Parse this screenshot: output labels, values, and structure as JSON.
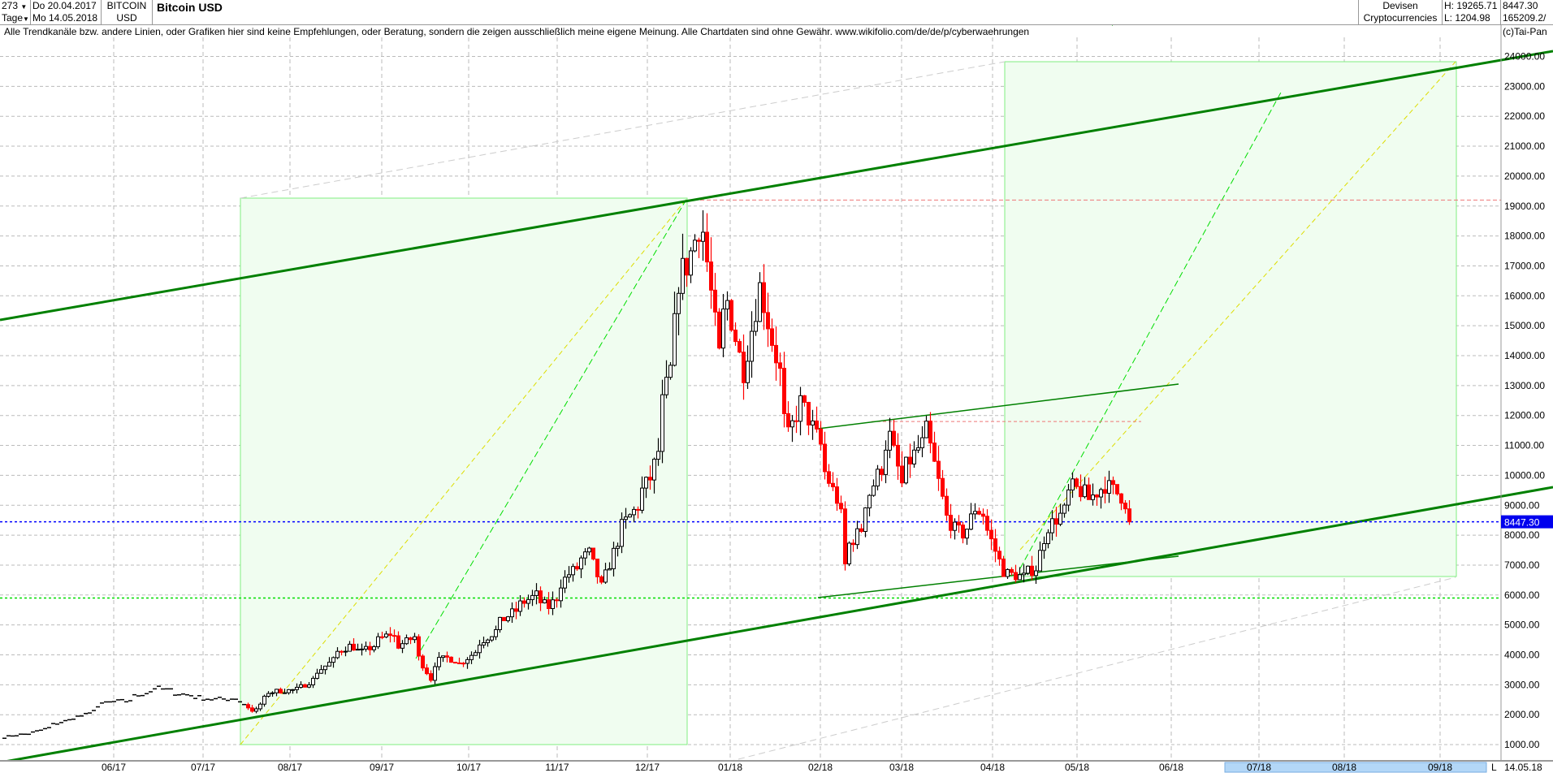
{
  "header": {
    "bars_count": "273",
    "interval": "Tage",
    "start_date": "Do 20.04.2017",
    "end_date": "Mo 14.05.2018",
    "symbol_line1": "BITCOIN",
    "symbol_line2": "USD",
    "title": "Bitcoin USD",
    "category_line1": "Devisen",
    "category_line2": "Cryptocurrencies",
    "high": "H: 19265.71",
    "low": "L: 1204.98",
    "last": "8447.30",
    "volume": "165209.2/"
  },
  "disclaimer": "Alle Trendkanäle bzw. andere Linien, oder Grafiken hier sind keine Empfehlungen, oder Beratung, sondern die zeigen ausschließlich meine eigene Meinung. Alle Chartdaten sind ohne Gewähr.  www.wikifolio.com/de/de/p/cyberwaehrungen",
  "copyright": "(c)Tai-Pan",
  "footer": {
    "scroll_marker": "L",
    "last_date": "14.05.18"
  },
  "colors": {
    "up_body": "#ffffff",
    "down_body": "#ff0000",
    "trend": "#008000",
    "box_fill": "#f0fdf0",
    "box_stroke": "#80ee80",
    "last_price_line": "#0000ff",
    "support_dotted": "#00dd00",
    "resistance_dashed": "#ee7777"
  },
  "chart_data": {
    "type": "candlestick",
    "yaxis_ticks": [
      1000,
      2000,
      3000,
      4000,
      5000,
      6000,
      7000,
      8000,
      9000,
      10000,
      11000,
      12000,
      13000,
      14000,
      15000,
      16000,
      17000,
      18000,
      19000,
      20000,
      21000,
      22000,
      23000,
      24000
    ],
    "ylim": [
      1000,
      24000
    ],
    "xaxis_ticks": [
      "06/17",
      "07/17",
      "08/17",
      "09/17",
      "10/17",
      "11/17",
      "12/17",
      "01/18",
      "02/18",
      "03/18",
      "04/18",
      "05/18",
      "06/18",
      "07/18",
      "08/18",
      "09/18"
    ],
    "last_price_label": "8447.30",
    "last_price": 8447.3,
    "grid": true,
    "approx_closes": [
      [
        "2017-04-20",
        1250
      ],
      [
        "2017-05-01",
        1400
      ],
      [
        "2017-05-10",
        1750
      ],
      [
        "2017-05-20",
        2050
      ],
      [
        "2017-05-25",
        2400
      ],
      [
        "2017-06-01",
        2450
      ],
      [
        "2017-06-12",
        2900
      ],
      [
        "2017-06-20",
        2700
      ],
      [
        "2017-07-01",
        2500
      ],
      [
        "2017-07-10",
        2550
      ],
      [
        "2017-07-16",
        1950
      ],
      [
        "2017-07-20",
        2750
      ],
      [
        "2017-07-31",
        2850
      ],
      [
        "2017-08-05",
        3250
      ],
      [
        "2017-08-14",
        4100
      ],
      [
        "2017-08-17",
        4300
      ],
      [
        "2017-08-22",
        4100
      ],
      [
        "2017-08-31",
        4700
      ],
      [
        "2017-09-04",
        4300
      ],
      [
        "2017-09-08",
        4600
      ],
      [
        "2017-09-14",
        3200
      ],
      [
        "2017-09-15",
        3700
      ],
      [
        "2017-09-20",
        3900
      ],
      [
        "2017-09-25",
        3700
      ],
      [
        "2017-10-02",
        4400
      ],
      [
        "2017-10-12",
        5400
      ],
      [
        "2017-10-20",
        6000
      ],
      [
        "2017-10-25",
        5600
      ],
      [
        "2017-11-01",
        6700
      ],
      [
        "2017-11-08",
        7400
      ],
      [
        "2017-11-12",
        5900
      ],
      [
        "2017-11-17",
        7800
      ],
      [
        "2017-11-26",
        9300
      ],
      [
        "2017-11-29",
        9900
      ],
      [
        "2017-12-01",
        10800
      ],
      [
        "2017-12-06",
        13500
      ],
      [
        "2017-12-08",
        16500
      ],
      [
        "2017-12-12",
        17000
      ],
      [
        "2017-12-17",
        19200
      ],
      [
        "2017-12-22",
        14000
      ],
      [
        "2017-12-26",
        15800
      ],
      [
        "2017-12-29",
        14000
      ],
      [
        "2018-01-01",
        13500
      ],
      [
        "2018-01-06",
        17000
      ],
      [
        "2018-01-10",
        14500
      ],
      [
        "2018-01-16",
        11300
      ],
      [
        "2018-01-20",
        12800
      ],
      [
        "2018-01-26",
        11000
      ],
      [
        "2018-02-01",
        9200
      ],
      [
        "2018-02-05",
        7000
      ],
      [
        "2018-02-06",
        7700
      ],
      [
        "2018-02-09",
        8200
      ],
      [
        "2018-02-15",
        10000
      ],
      [
        "2018-02-20",
        11300
      ],
      [
        "2018-02-23",
        9700
      ],
      [
        "2018-03-01",
        10900
      ],
      [
        "2018-03-05",
        11500
      ],
      [
        "2018-03-09",
        9200
      ],
      [
        "2018-03-14",
        8200
      ],
      [
        "2018-03-18",
        7900
      ],
      [
        "2018-03-21",
        8900
      ],
      [
        "2018-03-25",
        8500
      ],
      [
        "2018-03-30",
        6800
      ],
      [
        "2018-04-06",
        6600
      ],
      [
        "2018-04-11",
        6900
      ],
      [
        "2018-04-13",
        7900
      ],
      [
        "2018-04-20",
        8800
      ],
      [
        "2018-04-24",
        9600
      ],
      [
        "2018-04-30",
        9200
      ],
      [
        "2018-05-05",
        9800
      ],
      [
        "2018-05-10",
        9300
      ],
      [
        "2018-05-14",
        8447.3
      ]
    ],
    "horizontal_levels": {
      "resistance_high": 19200,
      "resistance_mid": 11800,
      "support": 5900
    }
  }
}
